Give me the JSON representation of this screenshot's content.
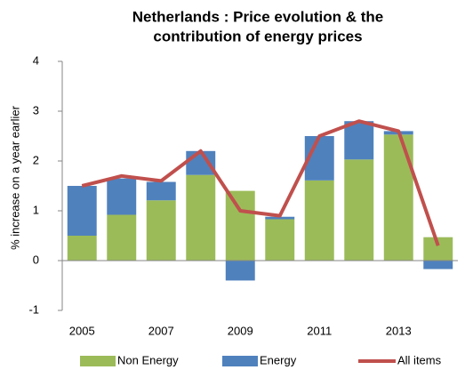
{
  "chart_data": {
    "type": "stacked-bar-line",
    "title": [
      "Netherlands : Price evolution & the",
      "contribution of energy prices"
    ],
    "y_label": "% increase on a year earlier",
    "categories": [
      "2005",
      null,
      "2007",
      null,
      "2009",
      null,
      "2011",
      null,
      "2013",
      null
    ],
    "series": [
      {
        "name": "Non Energy",
        "color": "#9bbb59",
        "kind": "bar",
        "values": [
          0.5,
          0.92,
          1.21,
          1.72,
          1.4,
          0.83,
          1.61,
          2.03,
          2.53,
          0.47
        ]
      },
      {
        "name": "Energy",
        "color": "#4f81bd",
        "kind": "bar",
        "values": [
          1.0,
          0.73,
          0.37,
          0.48,
          -0.4,
          0.05,
          0.89,
          0.77,
          0.07,
          -0.17
        ]
      },
      {
        "name": "All items",
        "color": "#c0504d",
        "kind": "line",
        "values": [
          1.5,
          1.7,
          1.6,
          2.2,
          1.0,
          0.9,
          2.5,
          2.8,
          2.6,
          0.3
        ]
      }
    ],
    "ylim": [
      -1,
      4
    ],
    "yticks": [
      -1,
      0,
      1,
      2,
      3,
      4
    ],
    "grid": false,
    "legend": "bottom"
  }
}
